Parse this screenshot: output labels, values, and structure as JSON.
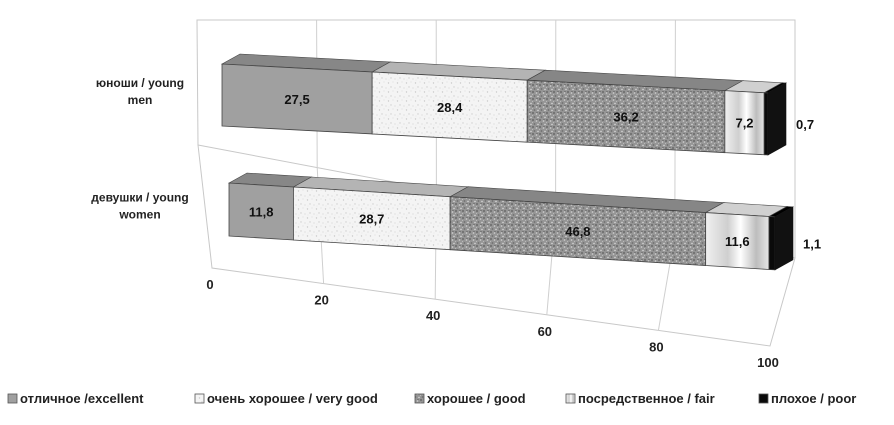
{
  "chart_data": {
    "type": "bar",
    "orientation": "horizontal",
    "stacked": true,
    "perspective": "3d",
    "categories": [
      "юноши / young men",
      "девушки / young women"
    ],
    "series": [
      {
        "name": "отличное /excellent",
        "values": [
          27.5,
          11.8
        ],
        "labels": [
          "27,5",
          "11,8"
        ],
        "color": "#a0a0a0",
        "pattern": "solid"
      },
      {
        "name": "очень хорошее / very good",
        "values": [
          28.4,
          28.7
        ],
        "labels": [
          "28,4",
          "28,7"
        ],
        "color": "#f2f2f2",
        "pattern": "light-speckle"
      },
      {
        "name": "хорошее / good",
        "values": [
          36.2,
          46.8
        ],
        "labels": [
          "36,2",
          "46,8"
        ],
        "color": "#9a9a9a",
        "pattern": "granite"
      },
      {
        "name": "посредственное / fair",
        "values": [
          7.2,
          11.6
        ],
        "labels": [
          "7,2",
          "11,6"
        ],
        "color": "#e4e4e4",
        "pattern": "silver-gradient"
      },
      {
        "name": "плохое / poor",
        "values": [
          0.7,
          1.1
        ],
        "labels": [
          "0,7",
          "1,1"
        ],
        "color": "#0a0a0a",
        "pattern": "solid"
      }
    ],
    "xlim": [
      0,
      100
    ],
    "xticks": [
      "0",
      "20",
      "40",
      "60",
      "80",
      "100"
    ],
    "grid": true,
    "legend_position": "bottom"
  }
}
